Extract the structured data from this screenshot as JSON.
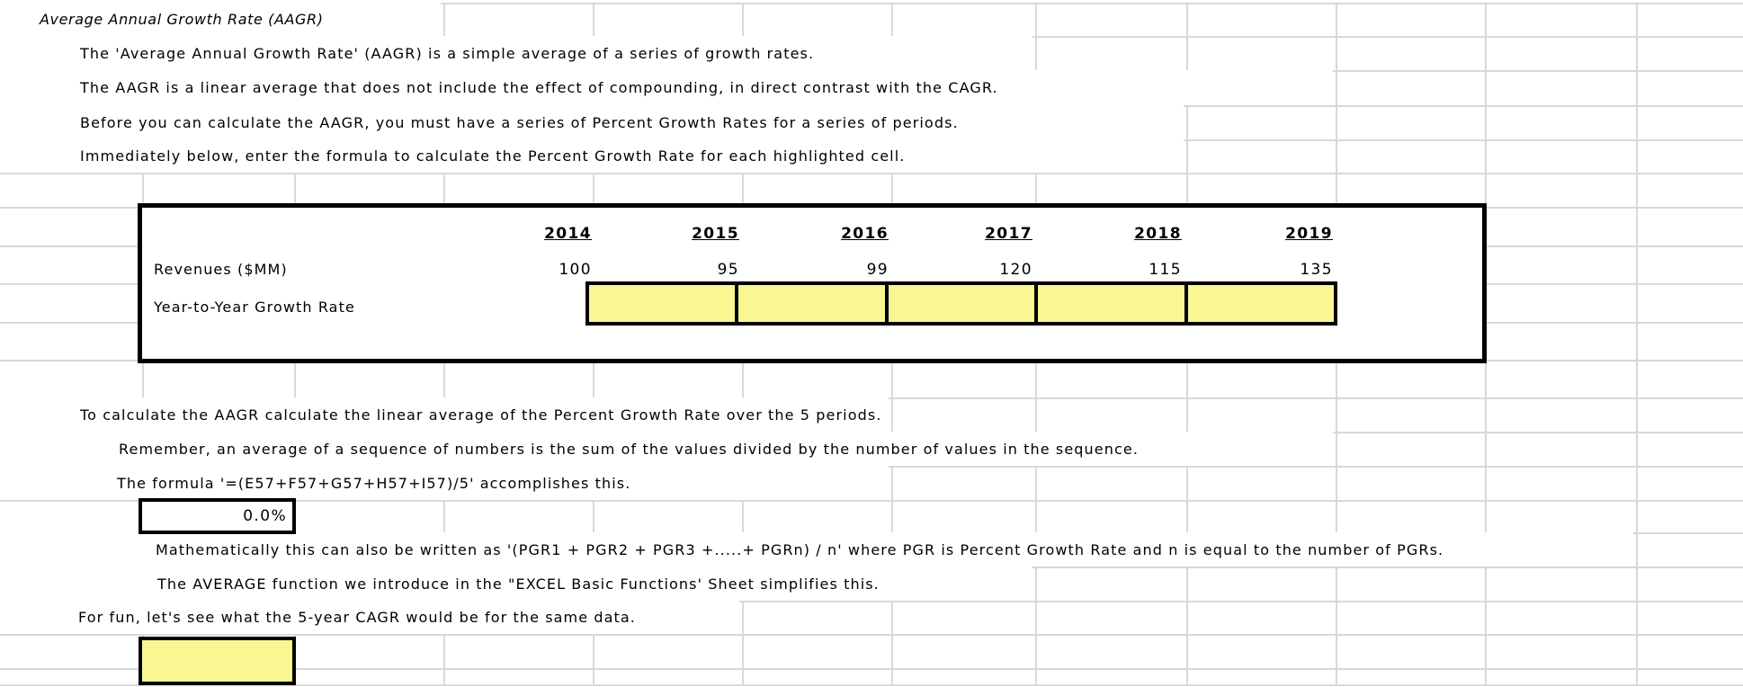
{
  "title": "Average Annual Growth Rate (AAGR)",
  "intro_lines": [
    "The 'Average Annual Growth Rate' (AAGR) is a simple average of a series of growth rates.",
    "The AAGR is a linear average that does not include the effect of compounding, in direct contrast with the CAGR.",
    "Before you can calculate the AAGR, you must have a series of Percent Growth Rates for a series of periods.",
    "Immediately below, enter the formula to calculate the Percent Growth Rate for each highlighted cell."
  ],
  "table": {
    "years": [
      "2014",
      "2015",
      "2016",
      "2017",
      "2018",
      "2019"
    ],
    "revenues_label": "Revenues ($MM)",
    "revenues": [
      "100",
      "95",
      "99",
      "120",
      "115",
      "135"
    ],
    "growth_label": "Year-to-Year Growth Rate",
    "growth_cells": [
      "",
      "",
      "",
      "",
      ""
    ]
  },
  "aagr_section": {
    "line1": "To calculate the AAGR calculate the linear average of the Percent Growth Rate over the 5 periods.",
    "line2": "Remember, an average of a sequence of numbers is the sum of the values divided by the number of values in the sequence.",
    "line3": "The formula '=(E57+F57+G57+H57+I57)/5' accomplishes this.",
    "aagr_value": "0.0%",
    "line4": "Mathematically this can also be written as '(PGR1 + PGR2 + PGR3 +.....+ PGRn) / n' where PGR is Percent Growth Rate and n is equal to the number of PGRs.",
    "line5": "The AVERAGE function we introduce in the \"EXCEL Basic Functions' Sheet simplifies this.",
    "line6": "For fun, let's see what the 5-year CAGR would be for the same data."
  },
  "colors": {
    "highlight": "#faf692",
    "gridline": "#d8d8d8",
    "border": "#000000"
  }
}
